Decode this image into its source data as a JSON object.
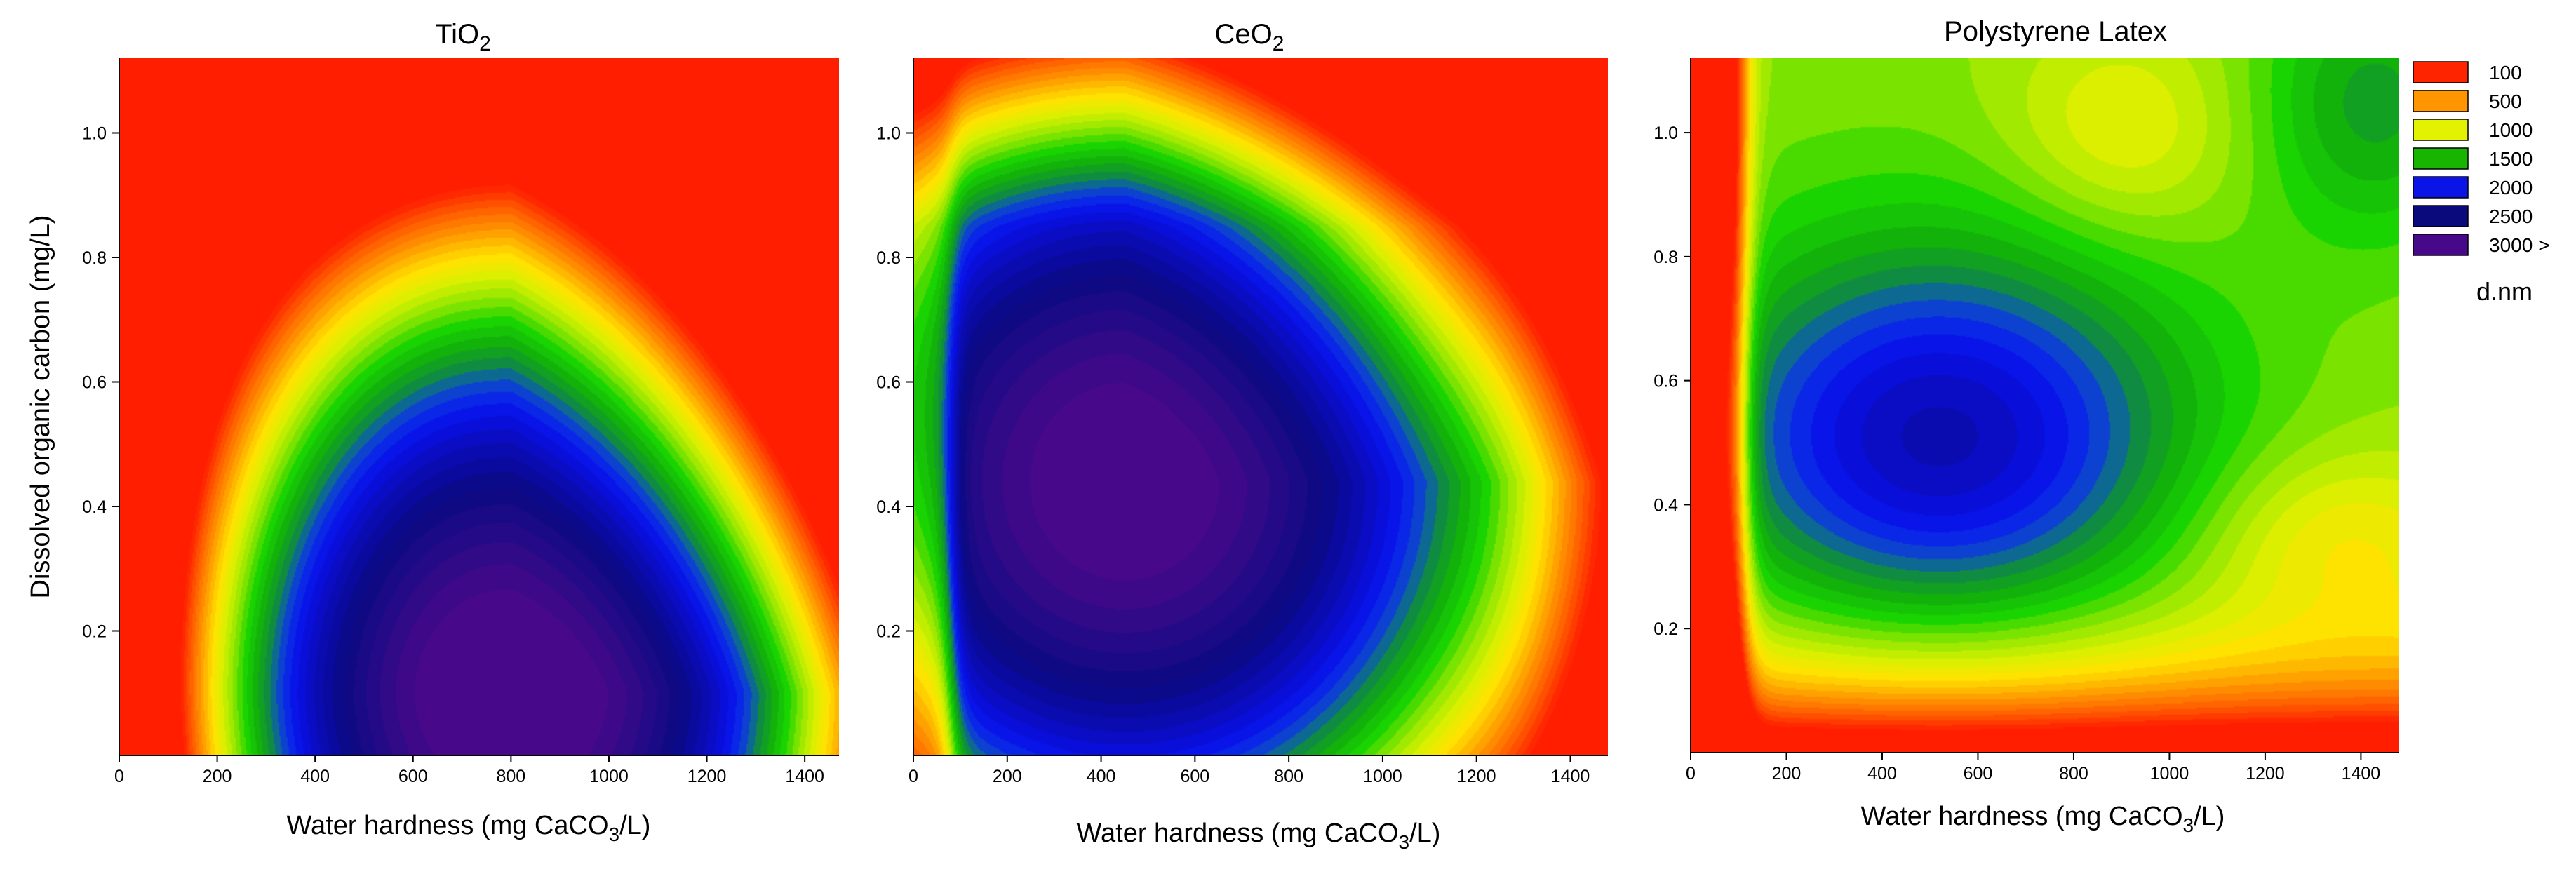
{
  "chart_data": [
    {
      "type": "heatmap",
      "subtype": "filled-contour",
      "title": "TiO2",
      "title_base": "TiO",
      "title_sub": "2",
      "xlabel": "Water hardness (mg CaCO3/L)",
      "xlabel_parts": [
        "Water hardness (mg CaCO",
        "3",
        "/L)"
      ],
      "ylabel": "Dissolved organic carbon (mg/L)",
      "xlim": [
        0,
        1470
      ],
      "ylim": [
        0,
        1.12
      ],
      "xticks": [
        0,
        200,
        400,
        600,
        800,
        1000,
        1200,
        1400
      ],
      "yticks": [
        0.2,
        0.4,
        0.6,
        0.8,
        1.0
      ],
      "ytick_labels": [
        "0.2",
        "0.4",
        "0.6",
        "0.8",
        "1.0"
      ],
      "z_units": "d.nm",
      "surface": {
        "peak_x": 800,
        "peak_y": 0.1,
        "peak_value": 3100,
        "low_region": "upper-right (high hardness, high DOC)",
        "description": "Maximum particle size at moderate-high hardness and low DOC; decreases toward the upper-right corner and toward zero hardness."
      }
    },
    {
      "type": "heatmap",
      "subtype": "filled-contour",
      "title": "CeO2",
      "title_base": "CeO",
      "title_sub": "2",
      "xlabel": "Water hardness (mg CaCO3/L)",
      "xlabel_parts": [
        "Water hardness (mg CaCO",
        "3",
        "/L)"
      ],
      "ylabel": "",
      "xlim": [
        0,
        1480
      ],
      "ylim": [
        0,
        1.12
      ],
      "xticks": [
        0,
        200,
        400,
        600,
        800,
        1000,
        1200,
        1400
      ],
      "yticks": [
        0.2,
        0.4,
        0.6,
        0.8,
        1.0
      ],
      "ytick_labels": [
        "0.2",
        "0.4",
        "0.6",
        "0.8",
        "1.0"
      ],
      "z_units": "d.nm",
      "surface": {
        "peak_x": 450,
        "peak_y": 0.44,
        "peak_value": 3050,
        "low_region": "top edge (high DOC)",
        "description": "Maximum near 450 mg/L hardness and 0.44 mg/L DOC; sharp transition at low hardness (~80 mg/L), decreasing toward high DOC."
      }
    },
    {
      "type": "heatmap",
      "subtype": "filled-contour",
      "title": "Polystyrene Latex",
      "xlabel": "Water hardness (mg CaCO3/L)",
      "xlabel_parts": [
        "Water hardness (mg CaCO",
        "3",
        "/L)"
      ],
      "ylabel": "",
      "xlim": [
        0,
        1480
      ],
      "ylim": [
        0,
        1.12
      ],
      "xticks": [
        0,
        200,
        400,
        600,
        800,
        1000,
        1200,
        1400
      ],
      "yticks": [
        0.2,
        0.4,
        0.6,
        0.8,
        1.0
      ],
      "ytick_labels": [
        "0.2",
        "0.4",
        "0.6",
        "0.8",
        "1.0"
      ],
      "z_units": "d.nm",
      "surface": {
        "peak_x": 520,
        "peak_y": 0.5,
        "peak_value": 2300,
        "low_region": "left edge and bottom (low hardness, low DOC)",
        "description": "Local maximum near 520 mg/L hardness and 0.5 mg/L DOC; smallest sizes along low hardness and very low DOC."
      }
    }
  ],
  "legend": {
    "title": "d.nm",
    "entries": [
      {
        "label": "100",
        "color": "#ff2400"
      },
      {
        "label": "500",
        "color": "#ff9600"
      },
      {
        "label": "1000",
        "color": "#e3f200"
      },
      {
        "label": "1500",
        "color": "#17b400"
      },
      {
        "label": "2000",
        "color": "#0a14e6"
      },
      {
        "label": "2500",
        "color": "#0a0a7d"
      },
      {
        "label": "3000 >",
        "color": "#48088a"
      }
    ]
  },
  "colormap_stops": [
    {
      "value": 0,
      "color": "#ff1e00"
    },
    {
      "value": 500,
      "color": "#ff9400"
    },
    {
      "value": 800,
      "color": "#ffe300"
    },
    {
      "value": 1000,
      "color": "#d8f000"
    },
    {
      "value": 1200,
      "color": "#8ee600"
    },
    {
      "value": 1400,
      "color": "#19d400"
    },
    {
      "value": 1600,
      "color": "#11ad0d"
    },
    {
      "value": 1750,
      "color": "#108a45"
    },
    {
      "value": 1850,
      "color": "#0d5fa8"
    },
    {
      "value": 1950,
      "color": "#0b30e6"
    },
    {
      "value": 2100,
      "color": "#0810e8"
    },
    {
      "value": 2300,
      "color": "#0a0cb8"
    },
    {
      "value": 2550,
      "color": "#0a0a82"
    },
    {
      "value": 2800,
      "color": "#2a0a88"
    },
    {
      "value": 3000,
      "color": "#47098a"
    }
  ]
}
